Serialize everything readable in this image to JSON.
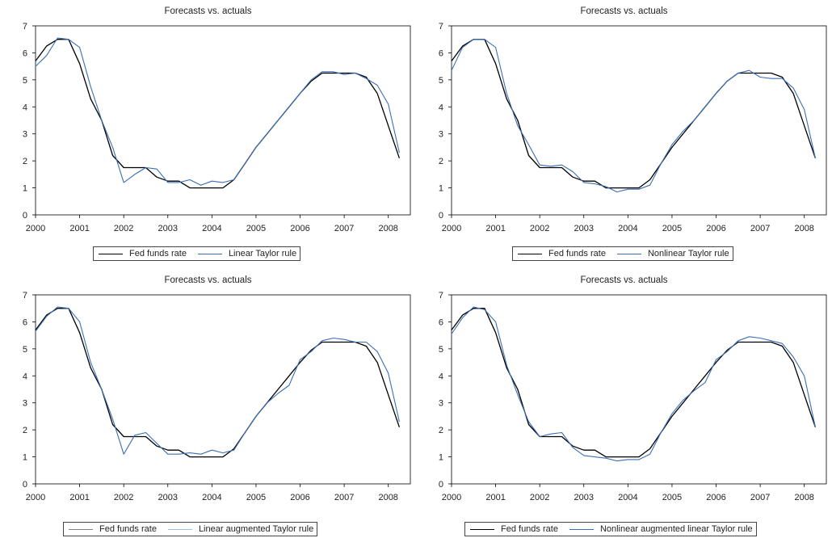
{
  "chart_data": [
    {
      "type": "line",
      "title": "Forecasts vs. actuals",
      "xlabel": "",
      "ylabel": "",
      "ylim": [
        0,
        7
      ],
      "xlim": [
        2000,
        2008.5
      ],
      "x_ticks": [
        "2000",
        "2001",
        "2002",
        "2003",
        "2004",
        "2005",
        "2006",
        "2007",
        "2008"
      ],
      "y_ticks": [
        "0",
        "1",
        "2",
        "3",
        "4",
        "5",
        "6",
        "7"
      ],
      "grid": false,
      "legend": "bottom",
      "x": [
        2000.0,
        2000.25,
        2000.5,
        2000.75,
        2001.0,
        2001.25,
        2001.5,
        2001.75,
        2002.0,
        2002.25,
        2002.5,
        2002.75,
        2003.0,
        2003.25,
        2003.5,
        2003.75,
        2004.0,
        2004.25,
        2004.5,
        2004.75,
        2005.0,
        2005.25,
        2005.5,
        2005.75,
        2006.0,
        2006.25,
        2006.5,
        2006.75,
        2007.0,
        2007.25,
        2007.5,
        2007.75,
        2008.0,
        2008.25
      ],
      "series": [
        {
          "name": "Fed funds rate",
          "color": "#000000",
          "values": [
            5.7,
            6.25,
            6.5,
            6.5,
            5.6,
            4.3,
            3.5,
            2.2,
            1.75,
            1.75,
            1.75,
            1.4,
            1.25,
            1.25,
            1.0,
            1.0,
            1.0,
            1.0,
            1.3,
            1.9,
            2.5,
            3.0,
            3.5,
            4.0,
            4.5,
            4.95,
            5.25,
            5.25,
            5.25,
            5.25,
            5.1,
            4.5,
            3.3,
            2.1
          ]
        },
        {
          "name": "Linear Taylor rule",
          "color": "#3a6fb8",
          "values": [
            5.5,
            5.9,
            6.55,
            6.5,
            6.2,
            4.75,
            3.5,
            2.5,
            1.2,
            1.5,
            1.75,
            1.7,
            1.2,
            1.2,
            1.3,
            1.1,
            1.25,
            1.2,
            1.3,
            1.9,
            2.5,
            3.0,
            3.5,
            4.0,
            4.5,
            5.0,
            5.3,
            5.3,
            5.2,
            5.25,
            5.05,
            4.8,
            4.1,
            2.3
          ]
        }
      ]
    },
    {
      "type": "line",
      "title": "Forecasts vs. actuals",
      "xlabel": "",
      "ylabel": "",
      "ylim": [
        0,
        7
      ],
      "xlim": [
        2000,
        2008.5
      ],
      "x_ticks": [
        "2000",
        "2001",
        "2002",
        "2003",
        "2004",
        "2005",
        "2006",
        "2007",
        "2008"
      ],
      "y_ticks": [
        "0",
        "1",
        "2",
        "3",
        "4",
        "5",
        "6",
        "7"
      ],
      "grid": false,
      "legend": "bottom",
      "x": [
        2000.0,
        2000.25,
        2000.5,
        2000.75,
        2001.0,
        2001.25,
        2001.5,
        2001.75,
        2002.0,
        2002.25,
        2002.5,
        2002.75,
        2003.0,
        2003.25,
        2003.5,
        2003.75,
        2004.0,
        2004.25,
        2004.5,
        2004.75,
        2005.0,
        2005.25,
        2005.5,
        2005.75,
        2006.0,
        2006.25,
        2006.5,
        2006.75,
        2007.0,
        2007.25,
        2007.5,
        2007.75,
        2008.0,
        2008.25
      ],
      "series": [
        {
          "name": "Fed funds rate",
          "color": "#000000",
          "values": [
            5.7,
            6.25,
            6.5,
            6.5,
            5.6,
            4.3,
            3.5,
            2.2,
            1.75,
            1.75,
            1.75,
            1.4,
            1.25,
            1.25,
            1.0,
            1.0,
            1.0,
            1.0,
            1.3,
            1.9,
            2.5,
            3.0,
            3.5,
            4.0,
            4.5,
            4.95,
            5.25,
            5.25,
            5.25,
            5.25,
            5.1,
            4.5,
            3.3,
            2.1
          ]
        },
        {
          "name": "Nonlinear Taylor rule",
          "color": "#3a6fb8",
          "values": [
            5.35,
            6.2,
            6.5,
            6.5,
            6.2,
            4.5,
            3.3,
            2.6,
            1.85,
            1.8,
            1.85,
            1.6,
            1.2,
            1.15,
            1.05,
            0.85,
            0.95,
            0.95,
            1.1,
            1.9,
            2.6,
            3.1,
            3.5,
            4.0,
            4.5,
            4.95,
            5.25,
            5.35,
            5.1,
            5.05,
            5.05,
            4.7,
            3.9,
            2.1
          ]
        }
      ]
    },
    {
      "type": "line",
      "title": "Forecasts vs. actuals",
      "xlabel": "",
      "ylabel": "",
      "ylim": [
        0,
        7
      ],
      "xlim": [
        2000,
        2008.5
      ],
      "x_ticks": [
        "2000",
        "2001",
        "2002",
        "2003",
        "2004",
        "2005",
        "2006",
        "2007",
        "2008"
      ],
      "y_ticks": [
        "0",
        "1",
        "2",
        "3",
        "4",
        "5",
        "6",
        "7"
      ],
      "grid": false,
      "legend": "bottom",
      "x": [
        2000.0,
        2000.25,
        2000.5,
        2000.75,
        2001.0,
        2001.25,
        2001.5,
        2001.75,
        2002.0,
        2002.25,
        2002.5,
        2002.75,
        2003.0,
        2003.25,
        2003.5,
        2003.75,
        2004.0,
        2004.25,
        2004.5,
        2004.75,
        2005.0,
        2005.25,
        2005.5,
        2005.75,
        2006.0,
        2006.25,
        2006.5,
        2006.75,
        2007.0,
        2007.25,
        2007.5,
        2007.75,
        2008.0,
        2008.25
      ],
      "series": [
        {
          "name": "Fed funds rate",
          "color": "#000000",
          "values": [
            5.7,
            6.25,
            6.5,
            6.5,
            5.6,
            4.3,
            3.5,
            2.2,
            1.75,
            1.75,
            1.75,
            1.4,
            1.25,
            1.25,
            1.0,
            1.0,
            1.0,
            1.0,
            1.3,
            1.9,
            2.5,
            3.0,
            3.5,
            4.0,
            4.5,
            4.95,
            5.25,
            5.25,
            5.25,
            5.25,
            5.1,
            4.5,
            3.3,
            2.1
          ]
        },
        {
          "name": "Linear augmented Taylor rule",
          "color": "#3a6fb8",
          "values": [
            5.65,
            6.2,
            6.55,
            6.5,
            6.0,
            4.5,
            3.5,
            2.4,
            1.1,
            1.8,
            1.9,
            1.5,
            1.1,
            1.1,
            1.15,
            1.1,
            1.25,
            1.15,
            1.25,
            1.9,
            2.5,
            3.0,
            3.35,
            3.65,
            4.6,
            4.9,
            5.3,
            5.4,
            5.35,
            5.25,
            5.25,
            4.9,
            4.1,
            2.3
          ]
        }
      ]
    },
    {
      "type": "line",
      "title": "Forecasts vs. actuals",
      "xlabel": "",
      "ylabel": "",
      "ylim": [
        0,
        7
      ],
      "xlim": [
        2000,
        2008.5
      ],
      "x_ticks": [
        "2000",
        "2001",
        "2002",
        "2003",
        "2004",
        "2005",
        "2006",
        "2007",
        "2008"
      ],
      "y_ticks": [
        "0",
        "1",
        "2",
        "3",
        "4",
        "5",
        "6",
        "7"
      ],
      "grid": false,
      "legend": "bottom",
      "x": [
        2000.0,
        2000.25,
        2000.5,
        2000.75,
        2001.0,
        2001.25,
        2001.5,
        2001.75,
        2002.0,
        2002.25,
        2002.5,
        2002.75,
        2003.0,
        2003.25,
        2003.5,
        2003.75,
        2004.0,
        2004.25,
        2004.5,
        2004.75,
        2005.0,
        2005.25,
        2005.5,
        2005.75,
        2006.0,
        2006.25,
        2006.5,
        2006.75,
        2007.0,
        2007.25,
        2007.5,
        2007.75,
        2008.0,
        2008.25
      ],
      "series": [
        {
          "name": "Fed funds rate",
          "color": "#000000",
          "values": [
            5.7,
            6.25,
            6.5,
            6.5,
            5.6,
            4.3,
            3.5,
            2.2,
            1.75,
            1.75,
            1.75,
            1.4,
            1.25,
            1.25,
            1.0,
            1.0,
            1.0,
            1.0,
            1.3,
            1.9,
            2.5,
            3.0,
            3.5,
            4.0,
            4.5,
            4.95,
            5.25,
            5.25,
            5.25,
            5.25,
            5.1,
            4.5,
            3.3,
            2.1
          ]
        },
        {
          "name": "Nonlinear augmented linear Taylor rule",
          "color": "#3a6fb8",
          "values": [
            5.55,
            6.15,
            6.55,
            6.45,
            6.0,
            4.4,
            3.3,
            2.3,
            1.75,
            1.85,
            1.9,
            1.35,
            1.05,
            1.0,
            0.95,
            0.85,
            0.9,
            0.9,
            1.1,
            1.9,
            2.6,
            3.1,
            3.45,
            3.75,
            4.6,
            4.9,
            5.3,
            5.45,
            5.4,
            5.3,
            5.2,
            4.7,
            4.0,
            2.1
          ]
        }
      ]
    }
  ]
}
